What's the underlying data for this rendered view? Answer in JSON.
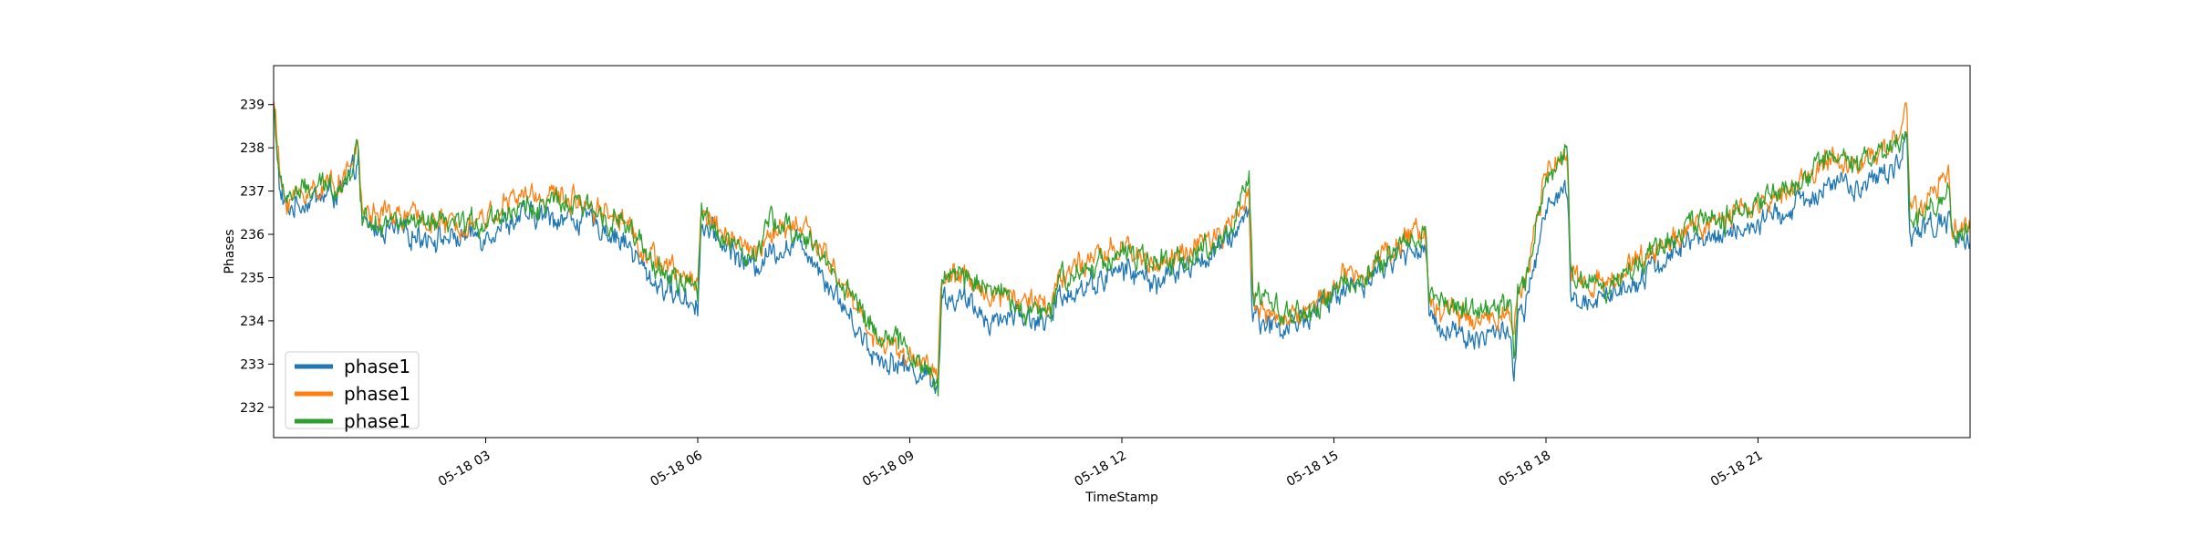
{
  "chart_data": {
    "type": "line",
    "title": "",
    "xlabel": "TimeStamp",
    "ylabel": "Phases",
    "x_unit": "hours since 05-18 00:00",
    "xlim": [
      0.0,
      24.0
    ],
    "ylim": [
      231.3,
      239.9
    ],
    "yticks": [
      232,
      233,
      234,
      235,
      236,
      237,
      238,
      239
    ],
    "xticks": [
      {
        "value": 3,
        "label": "05-18 03"
      },
      {
        "value": 6,
        "label": "05-18 06"
      },
      {
        "value": 9,
        "label": "05-18 09"
      },
      {
        "value": 12,
        "label": "05-18 12"
      },
      {
        "value": 15,
        "label": "05-18 15"
      },
      {
        "value": 18,
        "label": "05-18 18"
      },
      {
        "value": 21,
        "label": "05-18 21"
      }
    ],
    "legend_position": "lower-left",
    "x": [
      0.0,
      0.1,
      0.2,
      0.5,
      1.0,
      1.15,
      1.2,
      1.25,
      2.0,
      2.5,
      3.0,
      3.2,
      3.5,
      4.0,
      4.5,
      5.0,
      5.3,
      5.7,
      6.0,
      6.05,
      6.2,
      6.5,
      6.8,
      7.0,
      7.5,
      8.0,
      8.5,
      9.0,
      9.4,
      9.45,
      9.7,
      10.2,
      10.5,
      11.0,
      11.1,
      11.5,
      12.0,
      12.5,
      13.0,
      13.5,
      13.8,
      13.85,
      14.3,
      14.7,
      15.0,
      15.5,
      16.0,
      16.3,
      16.35,
      17.0,
      17.5,
      17.55,
      17.6,
      17.7,
      18.0,
      18.3,
      18.35,
      18.9,
      19.5,
      20.0,
      20.5,
      21.0,
      21.5,
      22.0,
      22.5,
      23.0,
      23.1,
      23.15,
      23.5,
      23.7,
      23.75,
      24.0
    ],
    "series": [
      {
        "name": "phase1",
        "color": "#1f77b4",
        "values": [
          239.0,
          236.8,
          236.6,
          236.8,
          237.0,
          237.5,
          237.8,
          236.2,
          236.0,
          235.9,
          236.0,
          236.2,
          236.4,
          236.4,
          236.3,
          235.8,
          235.0,
          234.6,
          234.4,
          236.2,
          236.0,
          235.6,
          235.2,
          235.6,
          235.8,
          234.5,
          233.2,
          232.9,
          232.6,
          234.5,
          234.5,
          234.0,
          234.2,
          233.9,
          234.6,
          234.8,
          235.2,
          234.9,
          235.3,
          235.8,
          236.6,
          234.1,
          233.8,
          234.2,
          234.6,
          235.0,
          235.6,
          235.7,
          234.0,
          233.6,
          233.8,
          232.5,
          234.0,
          234.2,
          236.5,
          237.1,
          234.4,
          234.6,
          235.2,
          235.8,
          236.0,
          236.2,
          236.6,
          237.2,
          237.0,
          237.7,
          238.4,
          236.0,
          236.2,
          236.4,
          235.8,
          236.0
        ]
      },
      {
        "name": "phase1",
        "color": "#ff7f0e",
        "values": [
          239.2,
          237.1,
          236.8,
          237.0,
          237.3,
          237.8,
          238.1,
          236.5,
          236.4,
          236.2,
          236.4,
          236.6,
          236.9,
          236.9,
          236.7,
          236.3,
          235.5,
          235.1,
          234.9,
          236.6,
          236.3,
          235.9,
          235.5,
          236.0,
          236.2,
          235.0,
          233.6,
          233.2,
          232.8,
          235.0,
          235.0,
          234.6,
          234.6,
          234.3,
          235.1,
          235.3,
          235.7,
          235.3,
          235.6,
          236.1,
          237.0,
          234.4,
          234.0,
          234.3,
          234.9,
          235.3,
          235.9,
          236.1,
          234.4,
          234.0,
          234.2,
          234.1,
          234.6,
          234.8,
          237.4,
          237.8,
          235.0,
          234.9,
          235.6,
          236.1,
          236.4,
          236.6,
          237.1,
          237.8,
          237.6,
          238.3,
          238.9,
          236.6,
          236.8,
          237.5,
          236.0,
          236.3
        ]
      },
      {
        "name": "phase1",
        "color": "#2ca02c",
        "values": [
          239.0,
          237.0,
          236.9,
          237.0,
          237.2,
          237.7,
          238.0,
          236.4,
          236.2,
          236.2,
          236.3,
          236.5,
          236.6,
          236.7,
          236.6,
          236.2,
          235.4,
          234.9,
          234.7,
          236.6,
          236.2,
          235.8,
          235.3,
          236.3,
          236.0,
          235.0,
          233.8,
          233.3,
          232.5,
          234.9,
          235.1,
          234.8,
          234.3,
          234.1,
          235.0,
          235.2,
          235.6,
          235.3,
          235.5,
          236.0,
          237.2,
          234.6,
          234.2,
          234.1,
          234.7,
          235.1,
          235.8,
          236.0,
          234.6,
          234.2,
          234.3,
          233.0,
          234.8,
          234.9,
          237.3,
          238.0,
          235.0,
          234.8,
          235.6,
          236.2,
          236.4,
          236.7,
          237.1,
          237.7,
          237.6,
          238.1,
          238.6,
          236.3,
          236.6,
          237.0,
          235.9,
          236.1
        ]
      }
    ]
  }
}
